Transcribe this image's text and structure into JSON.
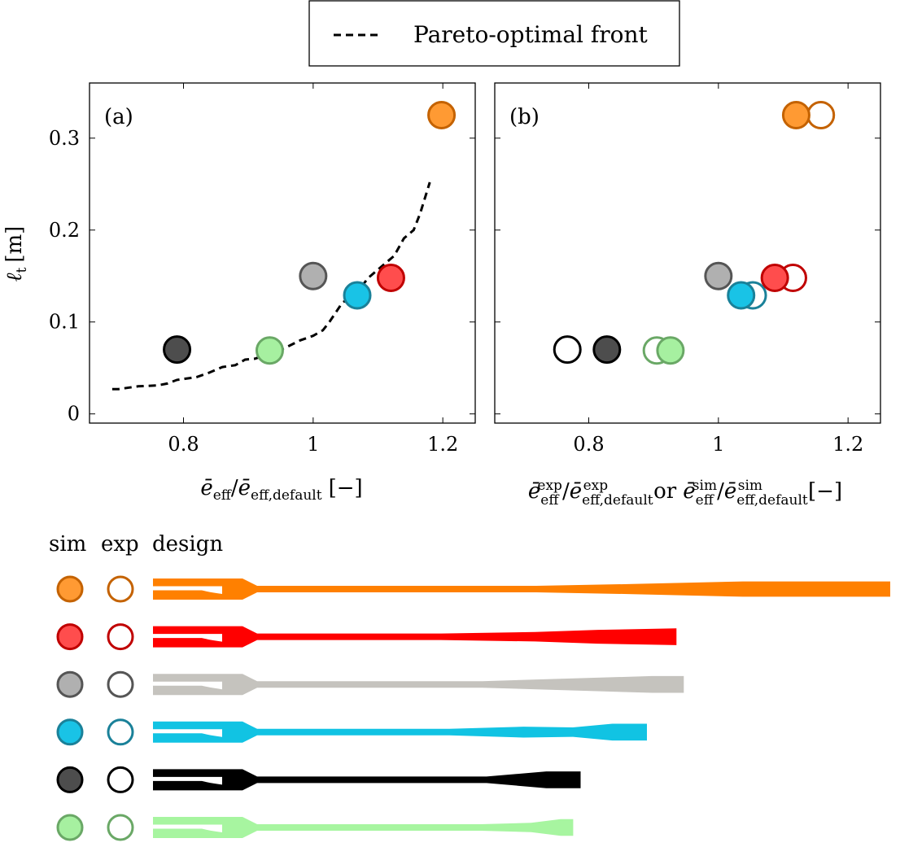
{
  "legend": {
    "entry": "Pareto-optimal front"
  },
  "panel_a": {
    "tag": "(a)",
    "xlabel_main": "ē",
    "xlabel_sub": "eff",
    "xlabel_rest_main": "ē",
    "xlabel_rest_sub": "eff,default",
    "xlabel_unit": "[−]"
  },
  "panel_b": {
    "tag": "(b)",
    "xlabel_or": "or",
    "xlabel_unit": "[−]"
  },
  "ylabel": {
    "main": "ℓ",
    "sub": "t",
    "unit": "[m]"
  },
  "design_header": {
    "sim": "sim",
    "exp": "exp",
    "design": "design"
  },
  "chart_data": [
    {
      "type": "scatter",
      "panel": "a",
      "title": "(a)",
      "xlabel": "ē_eff/ē_eff,default [−]",
      "ylabel": "ℓ_t [m]",
      "xlim": [
        0.655,
        1.25
      ],
      "ylim": [
        -0.01,
        0.36
      ],
      "xticks": [
        0.8,
        1.0,
        1.2
      ],
      "xtick_labels": [
        "0.8",
        "1",
        "1.2"
      ],
      "yticks": [
        0,
        0.1,
        0.2,
        0.3
      ],
      "ytick_labels": [
        "0",
        "0.1",
        "0.2",
        "0.3"
      ],
      "pareto_front": {
        "name": "Pareto-optimal front",
        "x": [
          0.69,
          0.7,
          0.73,
          0.76,
          0.775,
          0.79,
          0.82,
          0.84,
          0.86,
          0.88,
          0.895,
          0.91,
          0.94,
          0.96,
          0.98,
          1.0,
          1.015,
          1.025,
          1.045,
          1.065,
          1.085,
          1.105,
          1.125,
          1.14,
          1.155,
          1.165,
          1.18
        ],
        "y": [
          0.027,
          0.027,
          0.03,
          0.031,
          0.033,
          0.037,
          0.04,
          0.045,
          0.051,
          0.053,
          0.059,
          0.06,
          0.067,
          0.073,
          0.08,
          0.085,
          0.091,
          0.1,
          0.121,
          0.13,
          0.148,
          0.16,
          0.172,
          0.191,
          0.2,
          0.218,
          0.252
        ]
      },
      "points": [
        {
          "name": "orange",
          "x": 1.198,
          "y": 0.325,
          "color": "#ff9a33",
          "edge": "#c46200"
        },
        {
          "name": "red",
          "x": 1.12,
          "y": 0.148,
          "color": "#ff4d4d",
          "edge": "#c00000"
        },
        {
          "name": "gray",
          "x": 1.0,
          "y": 0.15,
          "color": "#b0b0b0",
          "edge": "#555555"
        },
        {
          "name": "cyan",
          "x": 1.068,
          "y": 0.129,
          "color": "#19c3e6",
          "edge": "#1a8199"
        },
        {
          "name": "black",
          "x": 0.79,
          "y": 0.07,
          "color": "#4d4d4d",
          "edge": "#000000"
        },
        {
          "name": "green",
          "x": 0.933,
          "y": 0.069,
          "color": "#a6f0a0",
          "edge": "#6aa866"
        }
      ]
    },
    {
      "type": "scatter",
      "panel": "b",
      "title": "(b)",
      "xlabel": "ē_eff^exp/ē_eff,default^exp or ē_eff^sim/ē_eff,default^sim [−]",
      "xlim": [
        0.655,
        1.25
      ],
      "ylim": [
        -0.01,
        0.36
      ],
      "xticks": [
        0.8,
        1.0,
        1.2
      ],
      "xtick_labels": [
        "0.8",
        "1",
        "1.2"
      ],
      "series": [
        {
          "name": "sim",
          "filled": true,
          "points": [
            {
              "name": "orange",
              "x": 1.12,
              "y": 0.325,
              "color": "#ff9a33",
              "edge": "#c46200"
            },
            {
              "name": "red",
              "x": 1.087,
              "y": 0.148,
              "color": "#ff4d4d",
              "edge": "#c00000"
            },
            {
              "name": "gray",
              "x": 1.0,
              "y": 0.15,
              "color": "#b0b0b0",
              "edge": "#555555"
            },
            {
              "name": "cyan",
              "x": 1.035,
              "y": 0.129,
              "color": "#19c3e6",
              "edge": "#1a8199"
            },
            {
              "name": "black",
              "x": 0.828,
              "y": 0.07,
              "color": "#4d4d4d",
              "edge": "#000000"
            },
            {
              "name": "green",
              "x": 0.926,
              "y": 0.069,
              "color": "#a6f0a0",
              "edge": "#6aa866"
            }
          ]
        },
        {
          "name": "exp",
          "filled": false,
          "points": [
            {
              "name": "orange",
              "x": 1.158,
              "y": 0.325,
              "color": "none",
              "edge": "#c46200"
            },
            {
              "name": "red",
              "x": 1.115,
              "y": 0.148,
              "color": "none",
              "edge": "#c00000"
            },
            {
              "name": "cyan",
              "x": 1.053,
              "y": 0.129,
              "color": "none",
              "edge": "#1a8199"
            },
            {
              "name": "black",
              "x": 0.767,
              "y": 0.07,
              "color": "none",
              "edge": "#000000"
            },
            {
              "name": "green",
              "x": 0.905,
              "y": 0.069,
              "color": "none",
              "edge": "#6aa866"
            }
          ]
        }
      ]
    }
  ],
  "designs": [
    {
      "name": "orange",
      "color": "#ff8000",
      "edge": "#c46200",
      "fill": "#ff9a33",
      "length_scale": 1.0,
      "taper": [
        [
          0.36,
          0.5
        ],
        [
          0.52,
          0.5
        ],
        [
          0.65,
          0.62
        ],
        [
          0.8,
          0.8
        ],
        [
          1.0,
          0.8
        ]
      ]
    },
    {
      "name": "red",
      "color": "#ff0000",
      "edge": "#c00000",
      "fill": "#ff4d4d",
      "length_scale": 0.71,
      "taper": [
        [
          0.55,
          0.5
        ],
        [
          0.73,
          0.6
        ],
        [
          0.85,
          0.75
        ],
        [
          1.0,
          0.85
        ]
      ]
    },
    {
      "name": "gray",
      "color": "#c5c3be",
      "edge": "#555555",
      "fill": "#b0b0b0",
      "length_scale": 0.72,
      "taper": [
        [
          0.62,
          0.5
        ],
        [
          0.94,
          0.85
        ],
        [
          1.0,
          0.85
        ]
      ]
    },
    {
      "name": "cyan",
      "color": "#11c3e3",
      "edge": "#1a8199",
      "fill": "#19c3e6",
      "length_scale": 0.67,
      "taper": [
        [
          0.6,
          0.5
        ],
        [
          0.75,
          0.65
        ],
        [
          0.85,
          0.6
        ],
        [
          0.93,
          0.85
        ],
        [
          1.0,
          0.85
        ]
      ]
    },
    {
      "name": "black",
      "color": "#000000",
      "edge": "#000000",
      "fill": "#4d4d4d",
      "length_scale": 0.58,
      "taper": [
        [
          0.78,
          0.5
        ],
        [
          0.92,
          0.85
        ],
        [
          1.0,
          0.85
        ]
      ]
    },
    {
      "name": "green",
      "color": "#a7f5a0",
      "edge": "#6aa866",
      "fill": "#a6f0a0",
      "length_scale": 0.57,
      "taper": [
        [
          0.78,
          0.5
        ],
        [
          0.9,
          0.6
        ],
        [
          0.97,
          0.85
        ],
        [
          1.0,
          0.85
        ]
      ]
    }
  ]
}
